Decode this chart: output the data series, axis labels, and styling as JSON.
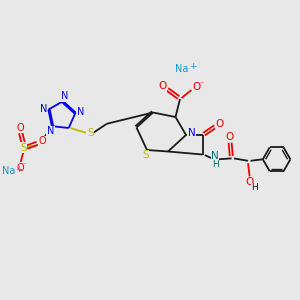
{
  "bg_color": "#e8e8e8",
  "figsize": [
    3.0,
    3.0
  ],
  "dpi": 100,
  "colors": {
    "black": "#1a1a1a",
    "blue": "#0000ee",
    "red": "#ee0000",
    "yellow": "#bbbb00",
    "teal": "#007070",
    "na_color": "#1199cc"
  },
  "xlim": [
    0,
    10
  ],
  "ylim": [
    0,
    10
  ]
}
